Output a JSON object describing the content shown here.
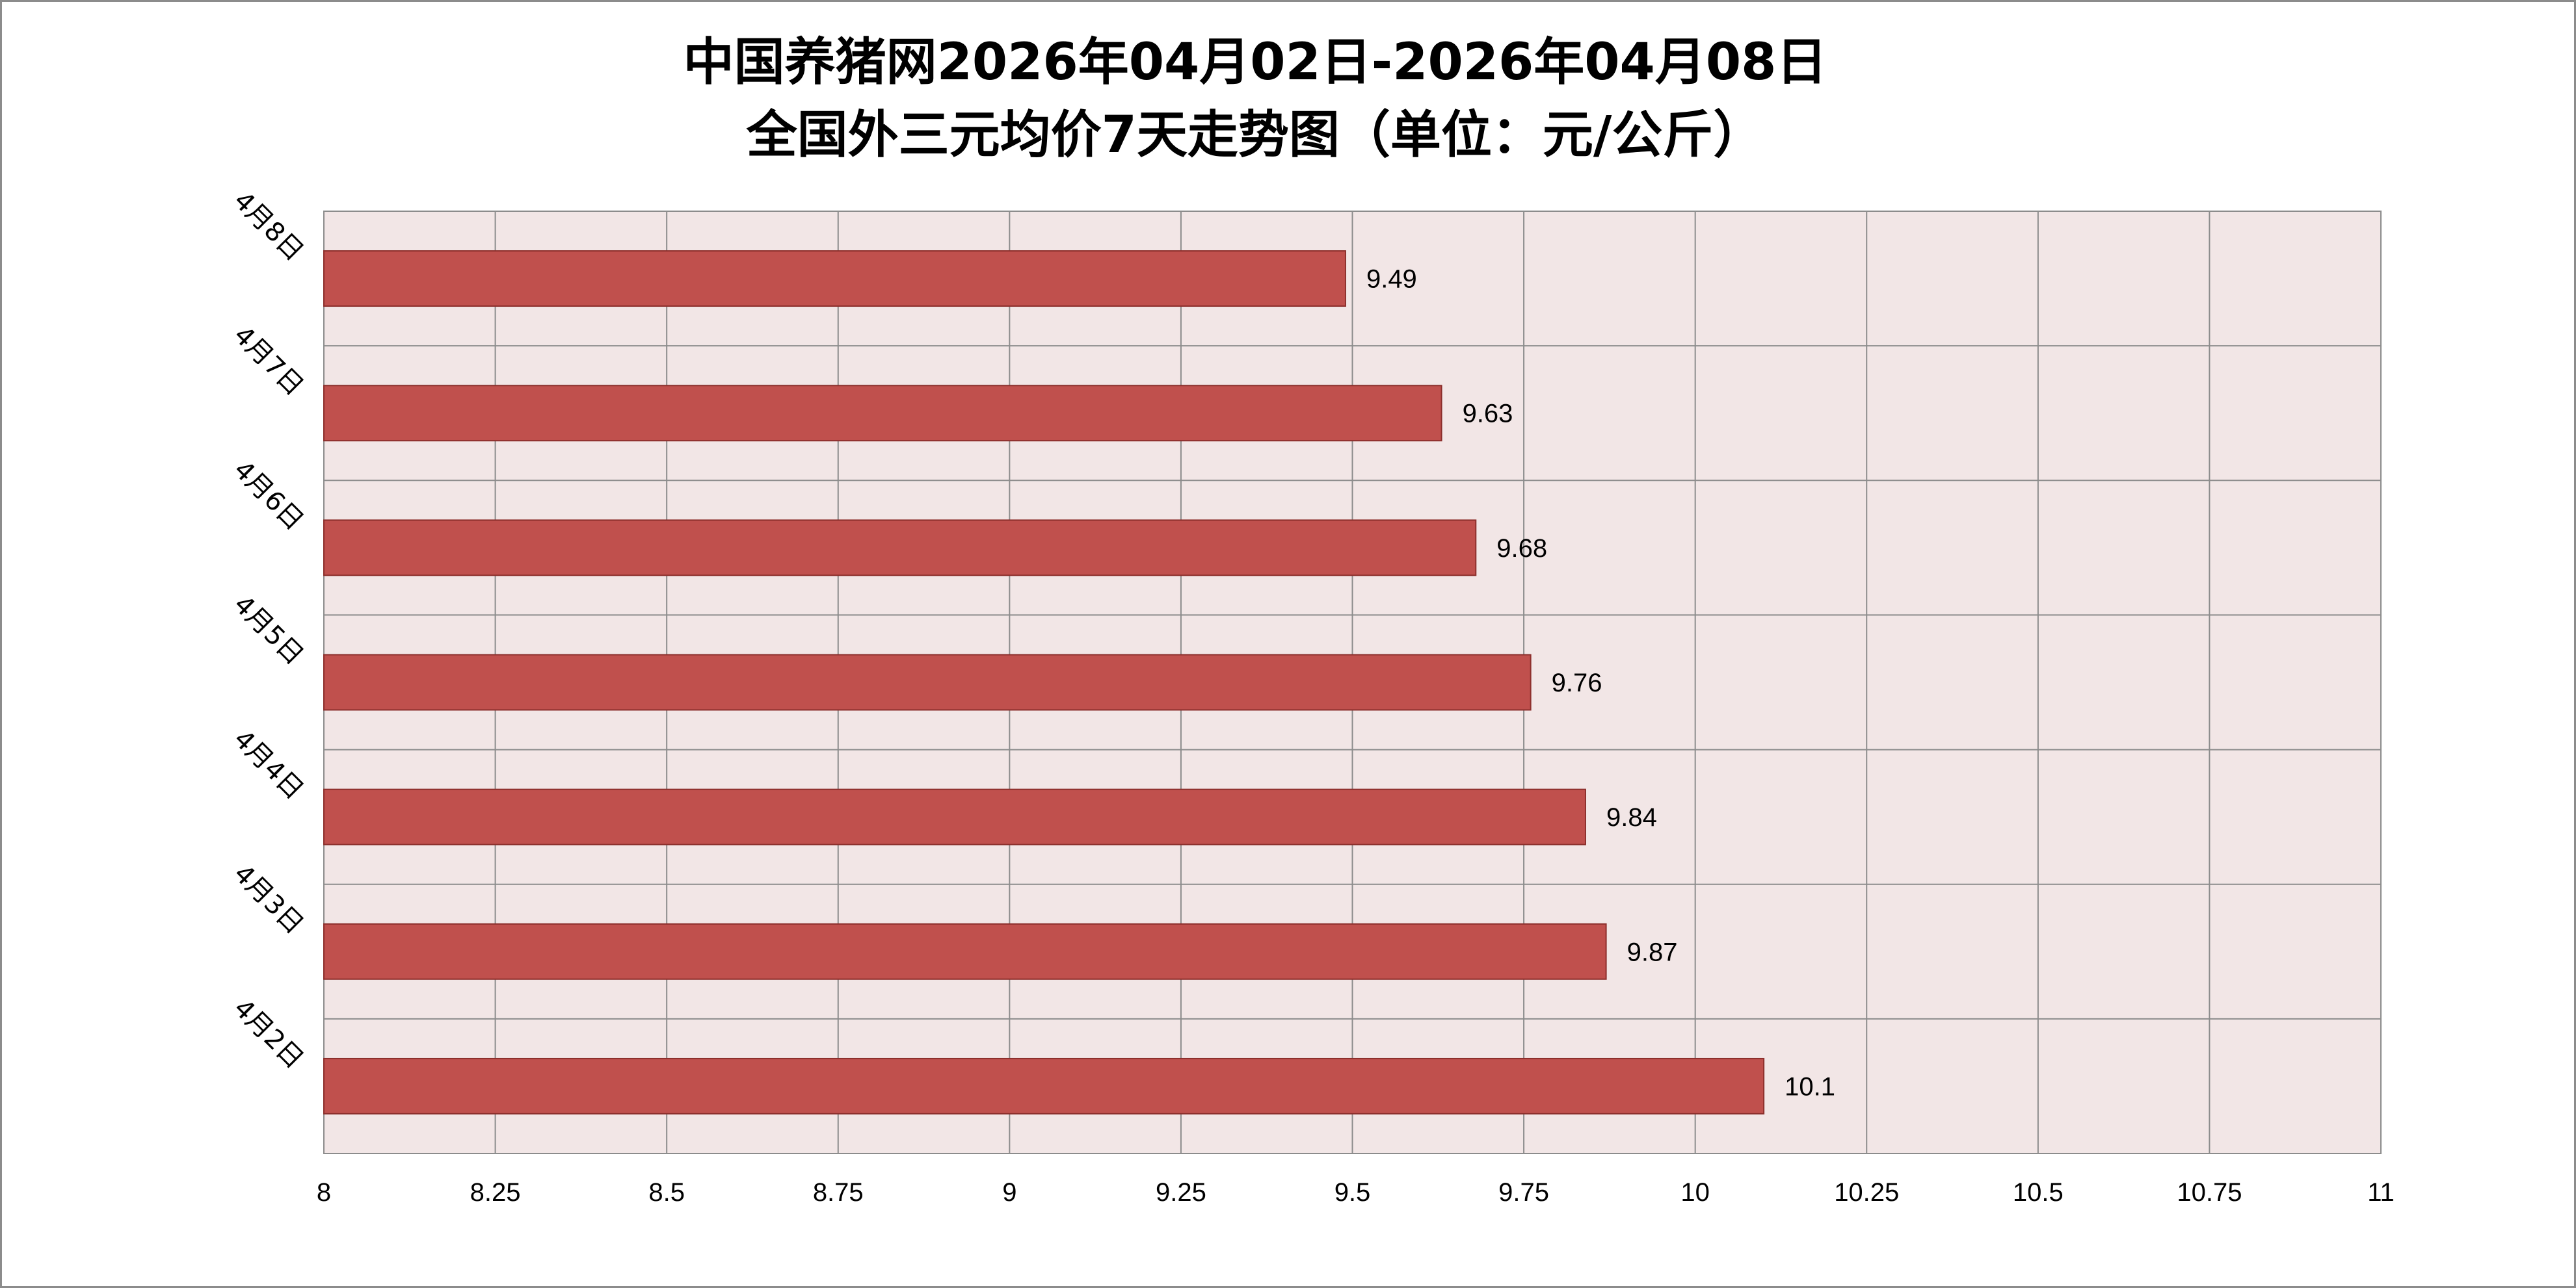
{
  "chart_data": {
    "type": "bar",
    "orientation": "horizontal",
    "title_lines": [
      "中国养猪网2026年04月02日-2026年04月08日",
      "全国外三元均价7天走势图（单位：元/公斤）"
    ],
    "categories": [
      "4月8日",
      "4月7日",
      "4月6日",
      "4月5日",
      "4月4日",
      "4月3日",
      "4月2日"
    ],
    "values": [
      9.49,
      9.63,
      9.68,
      9.76,
      9.84,
      9.87,
      10.1
    ],
    "value_labels": [
      "9.49",
      "9.63",
      "9.68",
      "9.76",
      "9.84",
      "9.87",
      "10.1"
    ],
    "xlim": [
      8,
      11
    ],
    "xticks": [
      "8",
      "8.25",
      "8.5",
      "8.75",
      "9",
      "9.25",
      "9.5",
      "9.75",
      "10",
      "10.25",
      "10.5",
      "10.75",
      "11"
    ],
    "grid": true,
    "legend": "none",
    "colors": {
      "bar": "#c0504d",
      "bar_border": "#8c2f2c",
      "plot_background": "#f2e6e6",
      "grid": "#8c8c8c"
    }
  }
}
